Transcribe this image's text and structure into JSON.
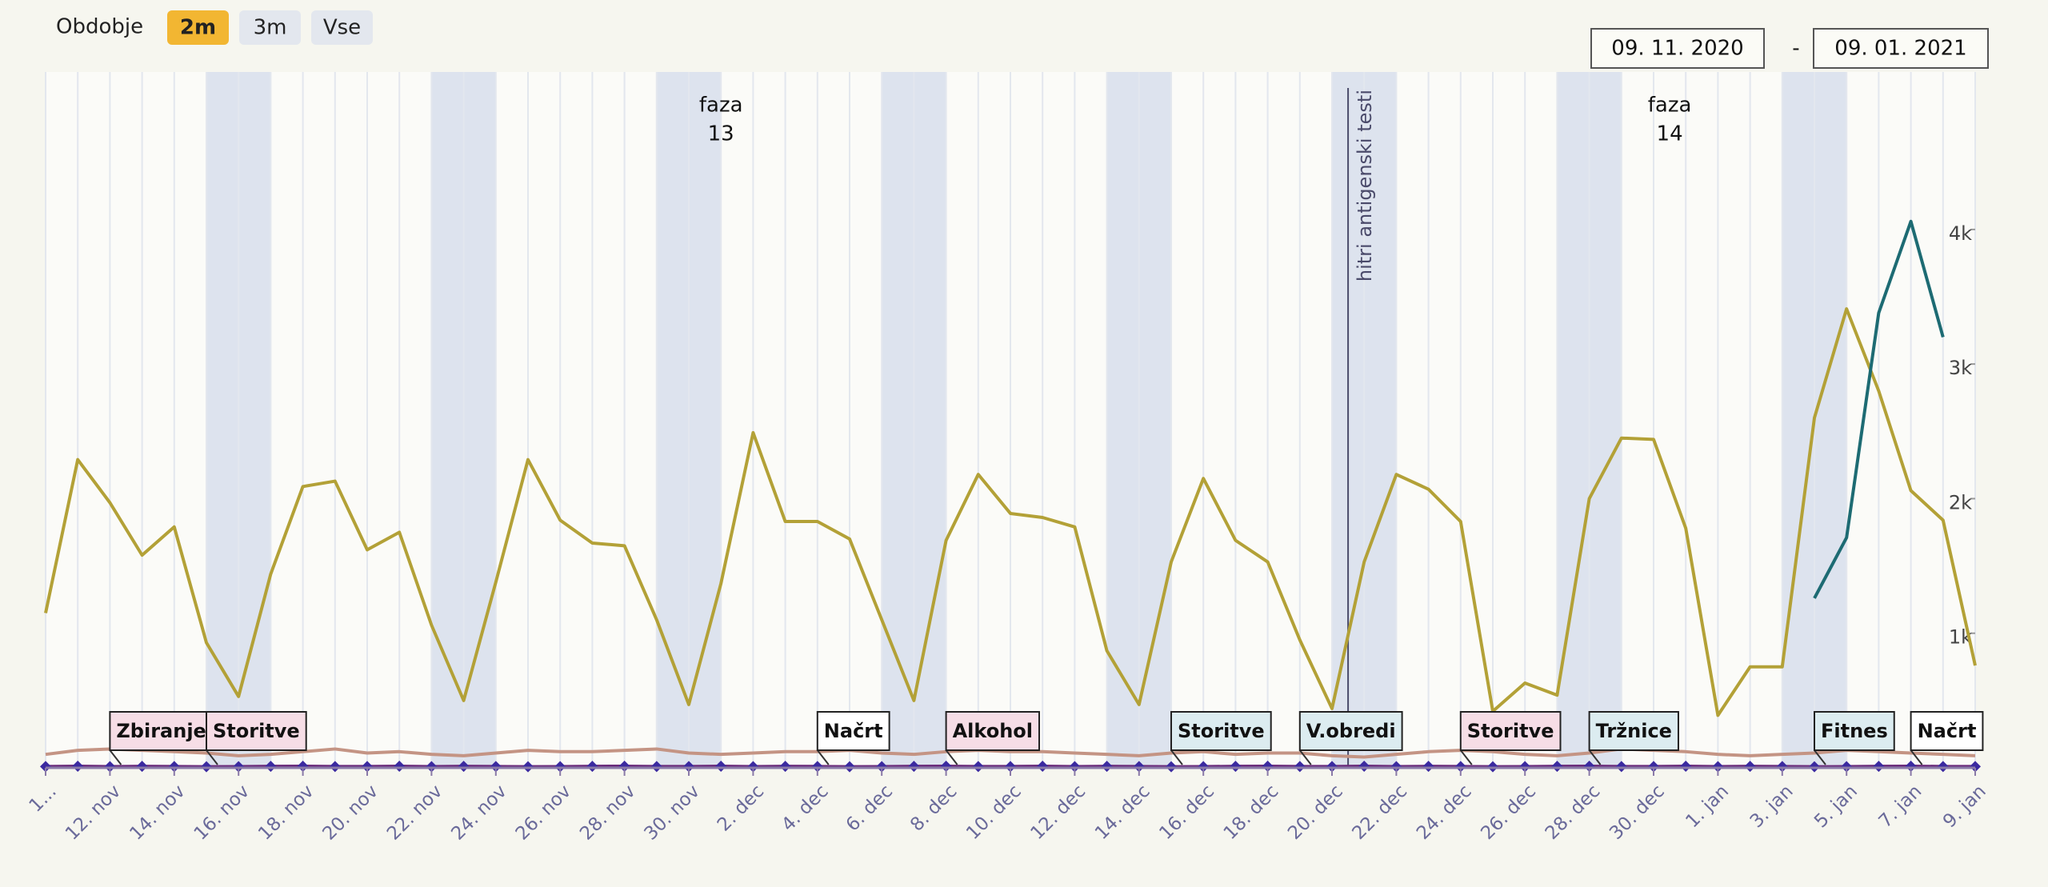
{
  "chart_data": {
    "type": "line",
    "range_selector": {
      "label": "Obdobje",
      "buttons": [
        "2m",
        "3m",
        "Vse"
      ],
      "selected": 0,
      "from": "09. 11. 2020",
      "separator": "-",
      "to": "09. 01. 2021"
    },
    "categories": [
      "1...",
      null,
      "12. nov",
      null,
      "14. nov",
      null,
      "16. nov",
      null,
      "18. nov",
      null,
      "20. nov",
      null,
      "22. nov",
      null,
      "24. nov",
      null,
      "26. nov",
      null,
      "28. nov",
      null,
      "30. nov",
      null,
      "2. dec",
      null,
      "4. dec",
      null,
      "6. dec",
      null,
      "8. dec",
      null,
      "10. dec",
      null,
      "12. dec",
      null,
      "14. dec",
      null,
      "16. dec",
      null,
      "18. dec",
      null,
      "20. dec",
      null,
      "22. dec",
      null,
      "24. dec",
      null,
      "26. dec",
      null,
      "28. dec",
      null,
      "30. dec",
      null,
      "1. jan",
      null,
      "3. jan",
      null,
      "5. jan",
      null,
      "7. jan",
      null,
      "9. jan"
    ],
    "series": [
      {
        "color": "#b3a137",
        "values": [
          1150,
          2290,
          1970,
          1580,
          1790,
          930,
          530,
          1440,
          2090,
          2130,
          1620,
          1750,
          1060,
          500,
          1380,
          2290,
          1840,
          1670,
          1650,
          1100,
          470,
          1370,
          2490,
          1830,
          1830,
          1700,
          1100,
          500,
          1690,
          2180,
          1890,
          1860,
          1790,
          870,
          470,
          1530,
          2150,
          1690,
          1530,
          950,
          440,
          1530,
          2180,
          2070,
          1830,
          420,
          630,
          540,
          2000,
          2450,
          2440,
          1780,
          390,
          750,
          750,
          2600,
          3410,
          2800,
          2060,
          1840,
          760
        ]
      },
      {
        "color": "#1d6b73",
        "values": [
          null,
          null,
          null,
          null,
          null,
          null,
          null,
          null,
          null,
          null,
          null,
          null,
          null,
          null,
          null,
          null,
          null,
          null,
          null,
          null,
          null,
          null,
          null,
          null,
          null,
          null,
          null,
          null,
          null,
          null,
          null,
          null,
          null,
          null,
          null,
          null,
          null,
          null,
          null,
          null,
          null,
          null,
          null,
          null,
          null,
          null,
          null,
          null,
          null,
          null,
          null,
          null,
          null,
          null,
          null,
          1260,
          1710,
          3380,
          4060,
          3200,
          null
        ]
      },
      {
        "color": "#c49484",
        "values": [
          100,
          130,
          140,
          130,
          120,
          110,
          90,
          100,
          120,
          140,
          110,
          120,
          100,
          90,
          110,
          130,
          120,
          120,
          130,
          140,
          110,
          100,
          110,
          120,
          120,
          130,
          110,
          100,
          120,
          130,
          120,
          120,
          110,
          100,
          90,
          110,
          120,
          100,
          110,
          110,
          90,
          80,
          100,
          120,
          130,
          120,
          100,
          90,
          110,
          140,
          130,
          120,
          100,
          90,
          100,
          110,
          130,
          120,
          110,
          100,
          90
        ]
      },
      {
        "color": "#6a2a7a",
        "marker_color": "#3b2aa0",
        "values": [
          10,
          12,
          9,
          11,
          10,
          8,
          9,
          11,
          12,
          10,
          10,
          12,
          9,
          11,
          10,
          8,
          9,
          11,
          12,
          10,
          10,
          12,
          9,
          11,
          10,
          8,
          9,
          11,
          12,
          10,
          10,
          12,
          9,
          11,
          10,
          8,
          9,
          11,
          12,
          10,
          10,
          12,
          9,
          11,
          10,
          8,
          9,
          11,
          12,
          10,
          10,
          12,
          9,
          11,
          10,
          8,
          9,
          11,
          12,
          10,
          10
        ]
      }
    ],
    "ylim": [
      0,
      5170
    ],
    "yticks": [
      {
        "value": 1000,
        "label": "1k"
      },
      {
        "value": 2000,
        "label": "2k"
      },
      {
        "value": 3000,
        "label": "3k"
      },
      {
        "value": 4000,
        "label": "4k"
      }
    ],
    "plot_bands": [
      {
        "from": 5,
        "to": 7
      },
      {
        "from": 12,
        "to": 14
      },
      {
        "from": 19,
        "to": 21
      },
      {
        "from": 26,
        "to": 28
      },
      {
        "from": 33,
        "to": 35
      },
      {
        "from": 40,
        "to": 42
      },
      {
        "from": 47,
        "to": 49
      },
      {
        "from": 54,
        "to": 56
      }
    ],
    "plot_line": {
      "label": "hitri antigenski testi",
      "at": 40.5
    },
    "phases": [
      {
        "lines": [
          "faza",
          "13"
        ],
        "at": 21
      },
      {
        "lines": [
          "faza",
          "14"
        ],
        "at": 50.5
      }
    ],
    "flags": [
      {
        "text": "Zbiranje",
        "at": 2,
        "color": "#f6dde6"
      },
      {
        "text": "Storitve",
        "at": 5,
        "color": "#f6dde6"
      },
      {
        "text": "Načrt",
        "at": 24,
        "color": "#ffffff"
      },
      {
        "text": "Alkohol",
        "at": 28,
        "color": "#f6dde6"
      },
      {
        "text": "Storitve",
        "at": 35,
        "color": "#dcecf0"
      },
      {
        "text": "V.obredi",
        "at": 39,
        "color": "#dcecf0"
      },
      {
        "text": "Storitve",
        "at": 44,
        "color": "#f6dde6"
      },
      {
        "text": "Tržnice",
        "at": 48,
        "color": "#dcecf0"
      },
      {
        "text": "Fitnes",
        "at": 55,
        "color": "#dcecf0"
      },
      {
        "text": "Načrt",
        "at": 58,
        "color": "#ffffff"
      }
    ]
  }
}
